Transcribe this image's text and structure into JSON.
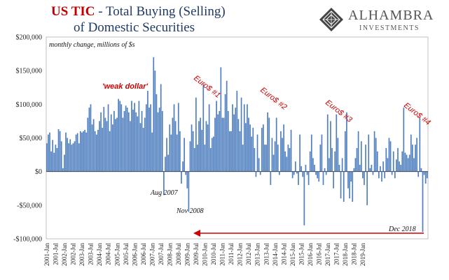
{
  "title": {
    "part1": "US TIC",
    "part2": " - Total Buying (Selling)",
    "line2": "of Domestic Securities"
  },
  "logo": {
    "name": "ALHAMBRA",
    "sub": "INVESTMENTS"
  },
  "colors": {
    "bar": "#4f7fbe",
    "title_red": "#c00000",
    "annotation_red": "#d00000",
    "title_dark": "#1f3a66"
  },
  "chart_data": {
    "type": "bar",
    "subtitle": "monthly change, millions of $s",
    "ylim": [
      -100000,
      200000
    ],
    "y_ticks": [
      {
        "value": 200000,
        "label": "$200,000"
      },
      {
        "value": 150000,
        "label": "$150,000"
      },
      {
        "value": 100000,
        "label": "$100,000"
      },
      {
        "value": 50000,
        "label": "$50,000"
      },
      {
        "value": 0,
        "label": "$0"
      },
      {
        "value": -50000,
        "label": "-$50,000"
      },
      {
        "value": -100000,
        "label": "-$100,000"
      }
    ],
    "x_start": "2001-Jan",
    "x_tick_labels": [
      "2001-Jan",
      "2001-Jul",
      "2002-Jan",
      "2002-Jul",
      "2003-Jan",
      "2003-Jul",
      "2004-Jan",
      "2004-Jul",
      "2005-Jan",
      "2005-Jul",
      "2006-Jan",
      "2006-Jul",
      "2007-Jan",
      "2007-Jul",
      "2008-Jan",
      "2008-Jul",
      "2009-Jan",
      "2009-Jul",
      "2010-Jan",
      "2010-Jul",
      "2011-Jan",
      "2011-Jul",
      "2012-Jan",
      "2012-Jul",
      "2013-Jan",
      "2013-Jul",
      "2014-Jan",
      "2014-Jul",
      "2015-Jan",
      "2015-Jul",
      "2016-Jan",
      "2016-Jul",
      "2017-Jan",
      "2017-Jul",
      "2018-Jan",
      "2018-Jul",
      "2019-Jan"
    ],
    "values": [
      42000,
      55000,
      58000,
      30000,
      47000,
      28000,
      40000,
      35000,
      63000,
      60000,
      45000,
      5000,
      25000,
      58000,
      50000,
      42000,
      48000,
      40000,
      42000,
      45000,
      55000,
      57000,
      42000,
      60000,
      58000,
      60000,
      62000,
      58000,
      80000,
      95000,
      100000,
      70000,
      78000,
      60000,
      55000,
      62000,
      75000,
      88000,
      65000,
      96000,
      80000,
      75000,
      100000,
      60000,
      85000,
      70000,
      90000,
      78000,
      80000,
      108000,
      105000,
      100000,
      80000,
      90000,
      98000,
      95000,
      88000,
      75000,
      105000,
      92000,
      102000,
      88000,
      82000,
      105000,
      72000,
      90000,
      65000,
      80000,
      100000,
      120000,
      95000,
      100000,
      58000,
      170000,
      150000,
      115000,
      88000,
      95000,
      130000,
      90000,
      -35000,
      22000,
      50000,
      25000,
      70000,
      55000,
      80000,
      100000,
      75000,
      55000,
      102000,
      60000,
      -18000,
      15000,
      50000,
      -5000,
      -25000,
      -60000,
      45000,
      70000,
      60000,
      35000,
      110000,
      40000,
      75000,
      80000,
      62000,
      130000,
      40000,
      75000,
      70000,
      100000,
      35000,
      50000,
      52000,
      80000,
      105000,
      85000,
      90000,
      155000,
      80000,
      80000,
      115000,
      135000,
      90000,
      60000,
      60000,
      100000,
      85000,
      95000,
      120000,
      78000,
      60000,
      110000,
      40000,
      100000,
      72000,
      100000,
      80000,
      70000,
      52000,
      65000,
      35000,
      -8000,
      55000,
      20000,
      -5000,
      65000,
      70000,
      40000,
      40000,
      88000,
      80000,
      -20000,
      50000,
      25000,
      45000,
      80000,
      40000,
      -5000,
      60000,
      50000,
      70000,
      30000,
      22000,
      40000,
      35000,
      62000,
      -10000,
      -5000,
      15000,
      -3000,
      -20000,
      55000,
      8000,
      -8000,
      -80000,
      10000,
      -5000,
      -20000,
      30000,
      55000,
      20000,
      10000,
      -5000,
      -10000,
      -15000,
      40000,
      55000,
      -20000,
      5000,
      -5000,
      85000,
      20000,
      75000,
      35000,
      -25000,
      30000,
      85000,
      50000,
      10000,
      -40000,
      20000,
      -45000,
      60000,
      88000,
      -25000,
      -40000,
      -15000,
      -45000,
      5000,
      20000,
      35000,
      60000,
      10000,
      45000,
      -10000,
      -20000,
      40000,
      -50000,
      55000,
      5000,
      10000,
      -5000,
      60000,
      50000,
      30000,
      -10000,
      8000,
      -15000,
      15000,
      -10000,
      35000,
      20000,
      50000,
      45000,
      -5000,
      30000,
      -10000,
      18000,
      35000,
      15000,
      10000,
      30000,
      95000,
      28000,
      25000,
      20000,
      25000,
      55000,
      40000,
      20000,
      40000,
      50000,
      -8000,
      80000,
      5000,
      -90000,
      -5000,
      -18000,
      -10000
    ],
    "annotations": {
      "weak_dollar": "'weak dollar'",
      "euro1": "Euro$ #1",
      "euro2": "Euro$ #2",
      "euro3": "Euro$ #3",
      "euro4": "Euro$ #4",
      "aug2007": "Aug 2007",
      "nov2008": "Nov 2008",
      "dec2018": "Dec 2018"
    }
  }
}
